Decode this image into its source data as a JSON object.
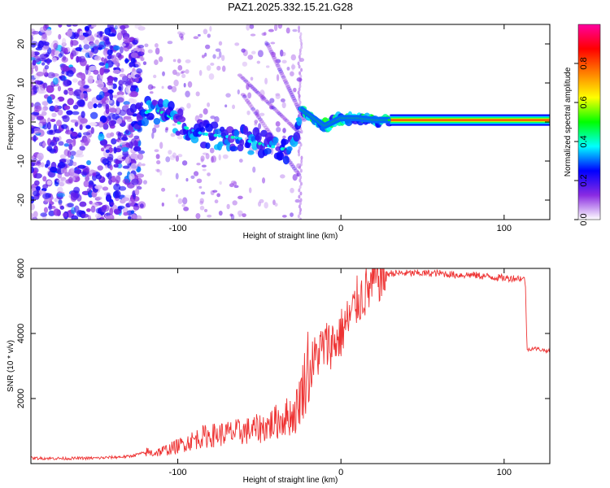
{
  "title": "PAZ1.2025.332.15.21.G28",
  "chart_data": [
    {
      "type": "heatmap",
      "name": "spectrogram",
      "xlabel": "Height of straight line (km)",
      "ylabel": "Frequency (Hz)",
      "xlim": [
        -190,
        128
      ],
      "ylim": [
        -25,
        25
      ],
      "x_ticks": [
        -100,
        0,
        100
      ],
      "x_tick_labels": [
        "-100",
        "0",
        "100"
      ],
      "y_ticks": [
        -20,
        -10,
        0,
        10,
        20
      ],
      "y_tick_labels": [
        "-20",
        "-10",
        "0",
        "10",
        "20"
      ],
      "colorbar": {
        "label": "Normalized spectral amplitude",
        "range": [
          0,
          1
        ],
        "ticks": [
          0.0,
          0.2,
          0.4,
          0.6,
          0.8
        ],
        "tick_labels": [
          "0.0",
          "0.2",
          "0.4",
          "0.6",
          "0.8"
        ],
        "colors": [
          "#ffffff",
          "#8a2be2",
          "#0000ff",
          "#00ffff",
          "#00ff00",
          "#ffff00",
          "#ff8000",
          "#ff0000",
          "#ff00a0"
        ]
      },
      "ridge": [
        {
          "x": -125,
          "y": 1.0
        },
        {
          "x": -115,
          "y": 3.5
        },
        {
          "x": -105,
          "y": 1.5
        },
        {
          "x": -95,
          "y": -1.5
        },
        {
          "x": -85,
          "y": -3.0
        },
        {
          "x": -75,
          "y": -3.5
        },
        {
          "x": -65,
          "y": -4.0
        },
        {
          "x": -55,
          "y": -5.0
        },
        {
          "x": -45,
          "y": -6.0
        },
        {
          "x": -35,
          "y": -7.0
        },
        {
          "x": -30,
          "y": -6.5
        },
        {
          "x": -25,
          "y": 3.5
        },
        {
          "x": -20,
          "y": 2.0
        },
        {
          "x": -10,
          "y": -1.0
        },
        {
          "x": 0,
          "y": 1.0
        },
        {
          "x": 10,
          "y": 1.0
        },
        {
          "x": 20,
          "y": 0.5
        },
        {
          "x": 30,
          "y": 0.5
        },
        {
          "x": 128,
          "y": 0.5
        }
      ],
      "band_start_x": 30,
      "band_y": 0.5
    },
    {
      "type": "line",
      "name": "snr",
      "xlabel": "Height of straight line (km)",
      "ylabel": "SNR (10 * v/v)",
      "xlim": [
        -190,
        128
      ],
      "ylim": [
        0,
        6000
      ],
      "x_ticks": [
        -100,
        0,
        100
      ],
      "x_tick_labels": [
        "-100",
        "0",
        "100"
      ],
      "y_ticks": [
        2000,
        4000,
        6000
      ],
      "y_tick_labels": [
        "2000",
        "4000",
        "6000"
      ],
      "color": "#ee3333",
      "series": [
        {
          "name": "SNR",
          "x": [
            -190,
            -170,
            -150,
            -130,
            -122,
            -115,
            -105,
            -95,
            -85,
            -75,
            -65,
            -55,
            -45,
            -35,
            -28,
            -22,
            -18,
            -14,
            -10,
            -6,
            -2,
            2,
            6,
            10,
            14,
            18,
            22,
            30,
            40,
            50,
            60,
            70,
            80,
            90,
            100,
            110,
            113,
            114,
            118,
            128
          ],
          "values": [
            150,
            140,
            150,
            200,
            300,
            250,
            350,
            500,
            650,
            700,
            750,
            800,
            900,
            1100,
            1200,
            2000,
            3000,
            3400,
            3600,
            3700,
            3800,
            4200,
            4500,
            5000,
            5200,
            5400,
            5700,
            5850,
            5850,
            5850,
            5850,
            5800,
            5800,
            5750,
            5700,
            5700,
            5650,
            3500,
            3550,
            3450
          ]
        }
      ]
    }
  ]
}
